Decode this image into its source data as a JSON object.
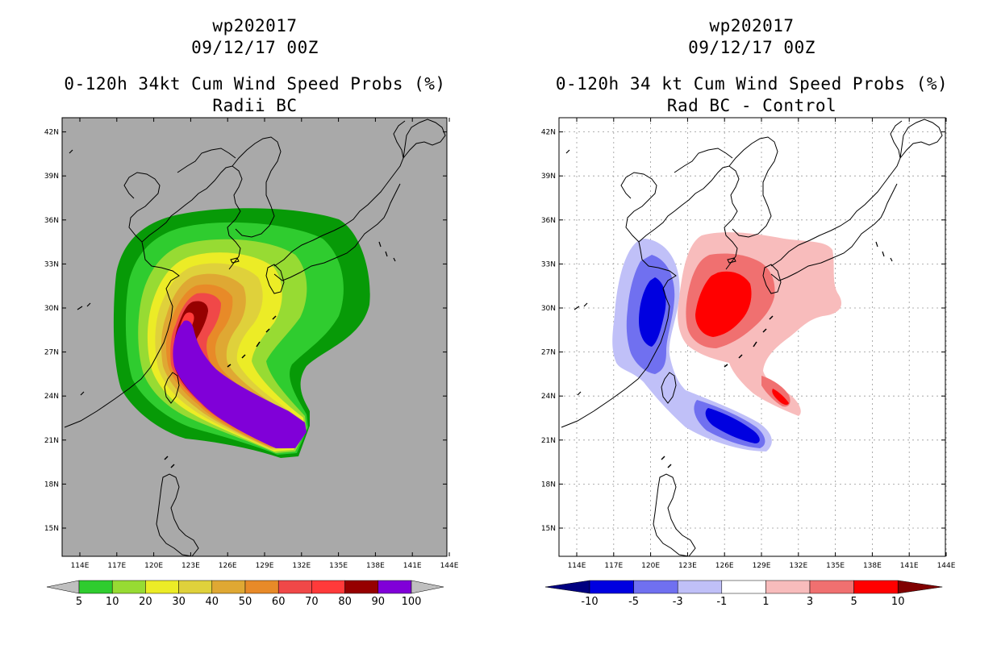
{
  "left_panel": {
    "title_line1": "wp202017",
    "title_line2": "09/12/17 00Z",
    "title_line3": "0-120h 34kt Cum Wind Speed Probs (%)",
    "title_line4": "Radii BC",
    "background_color": "#a9a9a9",
    "colorbar": {
      "labels": [
        "5",
        "10",
        "20",
        "30",
        "40",
        "50",
        "60",
        "70",
        "80",
        "90",
        "100"
      ],
      "colors": [
        "#079a07",
        "#2fcc2f",
        "#97db33",
        "#ecec26",
        "#dfd13b",
        "#dfa833",
        "#e88a28",
        "#f04848",
        "#ff3a3a",
        "#960000",
        "#8000d8"
      ],
      "end_color": "#bfbfbf"
    }
  },
  "right_panel": {
    "title_line1": "wp202017",
    "title_line2": "09/12/17 00Z",
    "title_line3": "0-120h 34 kt Cum Wind Speed Probs (%)",
    "title_line4": "Rad BC - Control",
    "background_color": "#ffffff",
    "colorbar": {
      "labels": [
        "-10",
        "-5",
        "-3",
        "-1",
        "1",
        "3",
        "5",
        "10"
      ],
      "colors": [
        "#0000e0",
        "#7070f0",
        "#c0c0f8",
        "#ffffff",
        "#f8bcbc",
        "#f07070",
        "#ff0000"
      ],
      "neg_end_color": "#000080",
      "pos_end_color": "#800000"
    }
  },
  "axes": {
    "lat_labels": [
      "15N",
      "18N",
      "21N",
      "24N",
      "27N",
      "30N",
      "33N",
      "36N",
      "39N",
      "42N"
    ],
    "lon_labels": [
      "114E",
      "117E",
      "120E",
      "123E",
      "126E",
      "129E",
      "132E",
      "135E",
      "138E",
      "141E",
      "144E"
    ]
  }
}
